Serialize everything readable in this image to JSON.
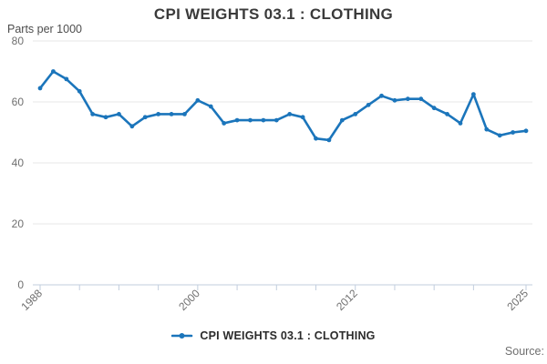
{
  "header": {
    "title": "CPI WEIGHTS 03.1 : CLOTHING",
    "unit_label": "Parts per 1000"
  },
  "legend": {
    "label": "CPI WEIGHTS 03.1 : CLOTHING"
  },
  "footer": {
    "source_label": "Source:"
  },
  "colors": {
    "line": "#1b75bb",
    "grid": "#e7e7e7",
    "axis": "#c2cede",
    "tick_label": "#6f6f6f",
    "title": "#3a3a3a"
  },
  "chart_data": {
    "type": "line",
    "title": "CPI WEIGHTS 03.1 : CLOTHING",
    "ylabel": "Parts per 1000",
    "xlabel": "",
    "grid": "horizontal",
    "legend_position": "bottom",
    "marker": "circle",
    "ylim": [
      0,
      80
    ],
    "yticks": [
      0,
      20,
      40,
      60,
      80
    ],
    "xticks": [
      1988,
      1991,
      1994,
      1997,
      2000,
      2003,
      2006,
      2009,
      2012,
      2015,
      2018,
      2021,
      2025
    ],
    "xlabels": [
      1988,
      2000,
      2012,
      2025
    ],
    "x": [
      1988,
      1989,
      1990,
      1991,
      1992,
      1993,
      1994,
      1995,
      1996,
      1997,
      1998,
      1999,
      2000,
      2001,
      2002,
      2003,
      2004,
      2005,
      2006,
      2007,
      2008,
      2009,
      2010,
      2011,
      2012,
      2013,
      2014,
      2015,
      2016,
      2017,
      2018,
      2019,
      2020,
      2021,
      2022,
      2023,
      2024,
      2025
    ],
    "series": [
      {
        "name": "CPI WEIGHTS 03.1 : CLOTHING",
        "values": [
          64.5,
          70,
          67.5,
          63.5,
          56,
          55,
          56,
          52,
          55,
          56,
          56,
          56,
          60.5,
          58.5,
          53,
          54,
          54,
          54,
          54,
          56,
          55,
          48,
          47.5,
          54,
          56,
          59,
          62,
          60.5,
          61,
          61,
          58,
          56,
          53,
          62.5,
          51,
          49,
          50,
          50.5
        ]
      }
    ]
  }
}
